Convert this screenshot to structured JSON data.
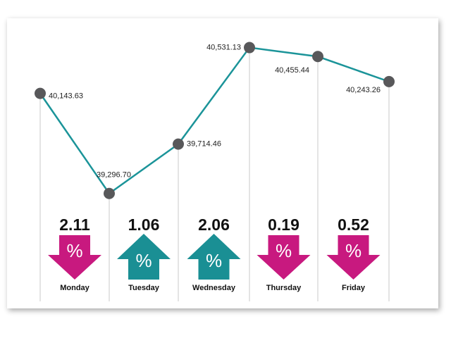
{
  "chart_data": {
    "type": "line",
    "categories": [
      null,
      null,
      null,
      null,
      null,
      null
    ],
    "values": [
      40143.63,
      39296.7,
      39714.46,
      40531.13,
      40455.44,
      40243.26
    ],
    "value_labels": [
      "40,143.63",
      "39,296.70",
      "39,714.46",
      "40,531.13",
      "40,455.44",
      "40,243.26"
    ],
    "color": "#1b9499",
    "point_color": "#58585a",
    "ylim": [
      39200,
      40600
    ],
    "changes": {
      "days": [
        "Monday",
        "Tuesday",
        "Wednesday",
        "Thursday",
        "Friday"
      ],
      "values": [
        2.11,
        1.06,
        2.06,
        0.19,
        0.52
      ],
      "directions": [
        "down",
        "up",
        "up",
        "down",
        "down"
      ],
      "symbol": "%",
      "colors": {
        "up": "#1a8f94",
        "down": "#c8197f"
      }
    }
  }
}
